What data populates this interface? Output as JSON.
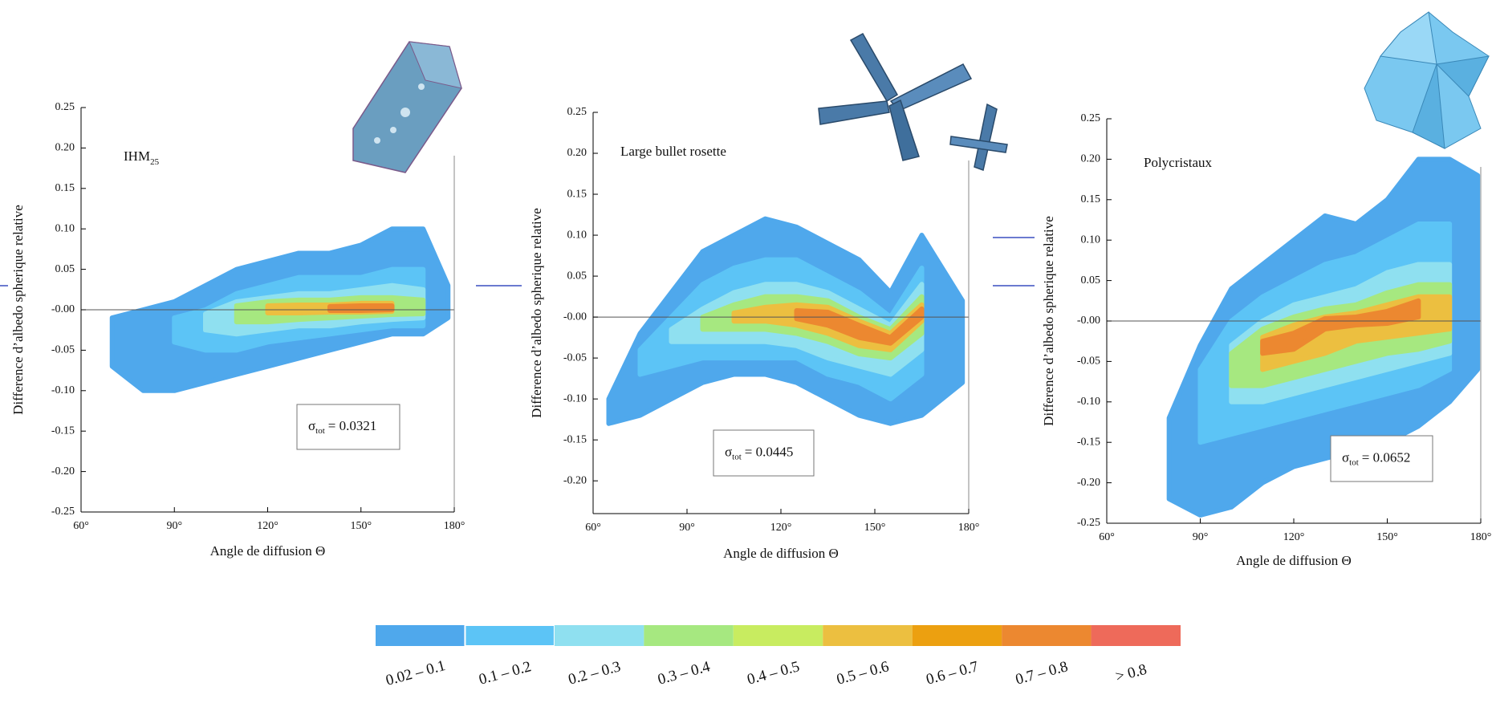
{
  "chart_data": [
    {
      "type": "contour",
      "title": "IHM",
      "title_sub": "25",
      "annotation": {
        "symbol": "σ",
        "sub": "tot",
        "text": "= 0.0321"
      },
      "xlabel": "Angle de diffusion Θ",
      "ylabel": "Difference d’albedo spherique relative",
      "xlim": [
        60,
        180
      ],
      "ylim": [
        -0.25,
        0.25
      ],
      "xticks": [
        {
          "value": 60,
          "label": "60°"
        },
        {
          "value": 90,
          "label": "90°"
        },
        {
          "value": 120,
          "label": "120°"
        },
        {
          "value": 150,
          "label": "150°"
        },
        {
          "value": 180,
          "label": "180°"
        }
      ],
      "yticks": [
        {
          "value": 0.25,
          "label": "0.25"
        },
        {
          "value": 0.2,
          "label": "0.20"
        },
        {
          "value": 0.15,
          "label": "0.15"
        },
        {
          "value": 0.1,
          "label": "0.10"
        },
        {
          "value": 0.05,
          "label": "0.05"
        },
        {
          "value": 0,
          "label": "-0.00"
        },
        {
          "value": -0.05,
          "label": "-0.05"
        },
        {
          "value": -0.1,
          "label": "-0.10"
        },
        {
          "value": -0.15,
          "label": "-0.15"
        },
        {
          "value": -0.2,
          "label": "-0.20"
        },
        {
          "value": -0.25,
          "label": "-0.25"
        }
      ],
      "x": [
        70,
        80,
        90,
        100,
        110,
        120,
        130,
        140,
        150,
        160,
        170,
        178
      ],
      "bands": [
        {
          "color": "#4fa8ec",
          "upper": [
            -0.01,
            0.0,
            0.01,
            0.03,
            0.05,
            0.06,
            0.07,
            0.07,
            0.08,
            0.1,
            0.1,
            0.03
          ],
          "lower": [
            -0.07,
            -0.1,
            -0.1,
            -0.09,
            -0.08,
            -0.07,
            -0.06,
            -0.05,
            -0.04,
            -0.03,
            -0.03,
            -0.01
          ]
        },
        {
          "color": "#5cc4f6",
          "upper": [
            null,
            null,
            -0.01,
            0.0,
            0.02,
            0.03,
            0.04,
            0.04,
            0.04,
            0.05,
            0.05,
            null
          ],
          "lower": [
            null,
            null,
            -0.04,
            -0.05,
            -0.05,
            -0.04,
            -0.035,
            -0.03,
            -0.025,
            -0.02,
            -0.02,
            null
          ]
        },
        {
          "color": "#8fe0f0",
          "upper": [
            null,
            null,
            null,
            -0.005,
            0.01,
            0.015,
            0.02,
            0.02,
            0.025,
            0.03,
            0.025,
            null
          ],
          "lower": [
            null,
            null,
            null,
            -0.025,
            -0.03,
            -0.025,
            -0.02,
            -0.02,
            -0.015,
            -0.012,
            -0.01,
            null
          ]
        },
        {
          "color": "#a6e880",
          "upper": [
            null,
            null,
            null,
            null,
            0.005,
            0.01,
            0.012,
            0.012,
            0.015,
            0.015,
            0.012,
            null
          ],
          "lower": [
            null,
            null,
            null,
            null,
            -0.015,
            -0.015,
            -0.012,
            -0.01,
            -0.008,
            -0.006,
            -0.005,
            null
          ]
        },
        {
          "color": "#ecbf40",
          "upper": [
            null,
            null,
            null,
            null,
            null,
            0.005,
            0.006,
            0.006,
            0.008,
            0.008,
            null,
            null
          ],
          "lower": [
            null,
            null,
            null,
            null,
            null,
            -0.004,
            -0.004,
            -0.003,
            -0.003,
            -0.002,
            null,
            null
          ]
        },
        {
          "color": "#ec8830",
          "upper": [
            null,
            null,
            null,
            null,
            null,
            null,
            null,
            0.004,
            0.005,
            0.005,
            null,
            null
          ],
          "lower": [
            null,
            null,
            null,
            null,
            null,
            null,
            null,
            -0.001,
            -0.001,
            0.0,
            null,
            null
          ]
        }
      ]
    },
    {
      "type": "contour",
      "title": "Large bullet rosette",
      "annotation": {
        "symbol": "σ",
        "sub": "tot",
        "text": "= 0.0445"
      },
      "xlabel": "Angle de diffusion Θ",
      "ylabel": "Difference d’albedo spherique relative",
      "xlim": [
        60,
        180
      ],
      "ylim": [
        -0.24,
        0.25
      ],
      "xticks": [
        {
          "value": 60,
          "label": "60°"
        },
        {
          "value": 90,
          "label": "90°"
        },
        {
          "value": 120,
          "label": "120°"
        },
        {
          "value": 150,
          "label": "150°"
        },
        {
          "value": 180,
          "label": "180°"
        }
      ],
      "yticks": [
        {
          "value": 0.25,
          "label": "0.25"
        },
        {
          "value": 0.2,
          "label": "0.20"
        },
        {
          "value": 0.15,
          "label": "0.15"
        },
        {
          "value": 0.1,
          "label": "0.10"
        },
        {
          "value": 0.05,
          "label": "0.05"
        },
        {
          "value": 0,
          "label": "-0.00"
        },
        {
          "value": -0.05,
          "label": "-0.05"
        },
        {
          "value": -0.1,
          "label": "-0.10"
        },
        {
          "value": -0.15,
          "label": "-0.15"
        },
        {
          "value": -0.2,
          "label": "-0.20"
        }
      ],
      "x": [
        65,
        75,
        85,
        95,
        105,
        115,
        125,
        135,
        145,
        155,
        165,
        178
      ],
      "bands": [
        {
          "color": "#4fa8ec",
          "upper": [
            -0.1,
            -0.02,
            0.03,
            0.08,
            0.1,
            0.12,
            0.11,
            0.09,
            0.07,
            0.03,
            0.1,
            0.02
          ],
          "lower": [
            -0.13,
            -0.12,
            -0.1,
            -0.08,
            -0.07,
            -0.07,
            -0.08,
            -0.1,
            -0.12,
            -0.13,
            -0.12,
            -0.08
          ]
        },
        {
          "color": "#5cc4f6",
          "upper": [
            null,
            -0.04,
            0.0,
            0.04,
            0.06,
            0.07,
            0.07,
            0.05,
            0.03,
            0.0,
            0.06,
            null
          ],
          "lower": [
            null,
            -0.07,
            -0.06,
            -0.05,
            -0.05,
            -0.05,
            -0.05,
            -0.07,
            -0.08,
            -0.1,
            -0.07,
            null
          ]
        },
        {
          "color": "#8fe0f0",
          "upper": [
            null,
            null,
            -0.015,
            0.01,
            0.03,
            0.04,
            0.04,
            0.03,
            0.01,
            -0.01,
            0.04,
            null
          ],
          "lower": [
            null,
            null,
            -0.03,
            -0.03,
            -0.03,
            -0.03,
            -0.035,
            -0.05,
            -0.06,
            -0.07,
            -0.04,
            null
          ]
        },
        {
          "color": "#a6e880",
          "upper": [
            null,
            null,
            null,
            0.0,
            0.015,
            0.025,
            0.025,
            0.02,
            0.0,
            -0.015,
            0.025,
            null
          ],
          "lower": [
            null,
            null,
            null,
            -0.015,
            -0.015,
            -0.015,
            -0.02,
            -0.03,
            -0.045,
            -0.05,
            -0.02,
            null
          ]
        },
        {
          "color": "#ecbf40",
          "upper": [
            null,
            null,
            null,
            null,
            0.005,
            0.012,
            0.015,
            0.012,
            -0.005,
            -0.02,
            0.015,
            null
          ],
          "lower": [
            null,
            null,
            null,
            null,
            -0.005,
            -0.005,
            -0.01,
            -0.02,
            -0.035,
            -0.04,
            -0.005,
            null
          ]
        },
        {
          "color": "#ec8830",
          "upper": [
            null,
            null,
            null,
            null,
            null,
            null,
            0.008,
            0.006,
            -0.01,
            -0.025,
            0.01,
            null
          ],
          "lower": [
            null,
            null,
            null,
            null,
            null,
            null,
            -0.002,
            -0.01,
            -0.025,
            -0.032,
            0.0,
            null
          ]
        }
      ]
    },
    {
      "type": "contour",
      "title": "Polycristaux",
      "annotation": {
        "symbol": "σ",
        "sub": "tot",
        "text": "= 0.0652"
      },
      "xlabel": "Angle de diffusion Θ",
      "ylabel": "Difference d’albedo spherique relative",
      "xlim": [
        60,
        180
      ],
      "ylim": [
        -0.25,
        0.25
      ],
      "xticks": [
        {
          "value": 60,
          "label": "60°"
        },
        {
          "value": 90,
          "label": "90°"
        },
        {
          "value": 120,
          "label": "120°"
        },
        {
          "value": 150,
          "label": "150°"
        },
        {
          "value": 180,
          "label": "180°"
        }
      ],
      "yticks": [
        {
          "value": 0.25,
          "label": "0.25"
        },
        {
          "value": 0.2,
          "label": "0.20"
        },
        {
          "value": 0.15,
          "label": "0.15"
        },
        {
          "value": 0.1,
          "label": "0.10"
        },
        {
          "value": 0.05,
          "label": "0.05"
        },
        {
          "value": 0,
          "label": "-0.00"
        },
        {
          "value": -0.05,
          "label": "-0.05"
        },
        {
          "value": -0.1,
          "label": "-0.10"
        },
        {
          "value": -0.15,
          "label": "-0.15"
        },
        {
          "value": -0.2,
          "label": "-0.20"
        },
        {
          "value": -0.25,
          "label": "-0.25"
        }
      ],
      "x": [
        80,
        90,
        100,
        110,
        120,
        130,
        140,
        150,
        160,
        170,
        179
      ],
      "bands": [
        {
          "color": "#4fa8ec",
          "upper": [
            -0.12,
            -0.03,
            0.04,
            0.07,
            0.1,
            0.13,
            0.12,
            0.15,
            0.2,
            0.2,
            0.18
          ],
          "lower": [
            -0.22,
            -0.24,
            -0.23,
            -0.2,
            -0.18,
            -0.17,
            -0.16,
            -0.15,
            -0.13,
            -0.1,
            -0.06
          ]
        },
        {
          "color": "#5cc4f6",
          "upper": [
            null,
            -0.06,
            0.0,
            0.03,
            0.05,
            0.07,
            0.08,
            0.1,
            0.12,
            0.12,
            null
          ],
          "lower": [
            null,
            -0.15,
            -0.14,
            -0.13,
            -0.12,
            -0.11,
            -0.1,
            -0.09,
            -0.08,
            -0.06,
            null
          ]
        },
        {
          "color": "#8fe0f0",
          "upper": [
            null,
            null,
            -0.03,
            0.0,
            0.02,
            0.03,
            0.04,
            0.06,
            0.07,
            0.07,
            null
          ],
          "lower": [
            null,
            null,
            -0.1,
            -0.1,
            -0.09,
            -0.08,
            -0.07,
            -0.06,
            -0.05,
            -0.04,
            null
          ]
        },
        {
          "color": "#a6e880",
          "upper": [
            null,
            null,
            -0.04,
            -0.01,
            0.005,
            0.015,
            0.02,
            0.035,
            0.045,
            0.045,
            null
          ],
          "lower": [
            null,
            null,
            -0.08,
            -0.08,
            -0.07,
            -0.06,
            -0.05,
            -0.04,
            -0.035,
            -0.025,
            null
          ]
        },
        {
          "color": "#ecbf40",
          "upper": [
            null,
            null,
            null,
            -0.02,
            -0.005,
            0.005,
            0.01,
            0.02,
            0.03,
            0.03,
            null
          ],
          "lower": [
            null,
            null,
            null,
            -0.06,
            -0.05,
            -0.04,
            -0.025,
            -0.02,
            -0.015,
            -0.01,
            null
          ]
        },
        {
          "color": "#ec8830",
          "upper": [
            null,
            null,
            null,
            -0.025,
            -0.015,
            0.003,
            0.005,
            0.012,
            0.025,
            null,
            null
          ],
          "lower": [
            null,
            null,
            null,
            -0.04,
            -0.035,
            -0.01,
            -0.005,
            -0.003,
            0.005,
            null,
            null
          ]
        }
      ]
    }
  ],
  "colorbar": {
    "levels": [
      {
        "label": "0.02 – 0.1",
        "color": "#4fa8ec"
      },
      {
        "label": "0.1 – 0.2",
        "color": "#5cc4f6"
      },
      {
        "label": "0.2 – 0.3",
        "color": "#8fe0f0"
      },
      {
        "label": "0.3 – 0.4",
        "color": "#a6e880"
      },
      {
        "label": "0.4 – 0.5",
        "color": "#c8ec60"
      },
      {
        "label": "0.5 – 0.6",
        "color": "#ecbf40"
      },
      {
        "label": "0.6 – 0.7",
        "color": "#eca010"
      },
      {
        "label": "0.7 – 0.8",
        "color": "#ec8830"
      },
      {
        "label": "> 0.8",
        "color": "#ee6a5a"
      }
    ]
  }
}
